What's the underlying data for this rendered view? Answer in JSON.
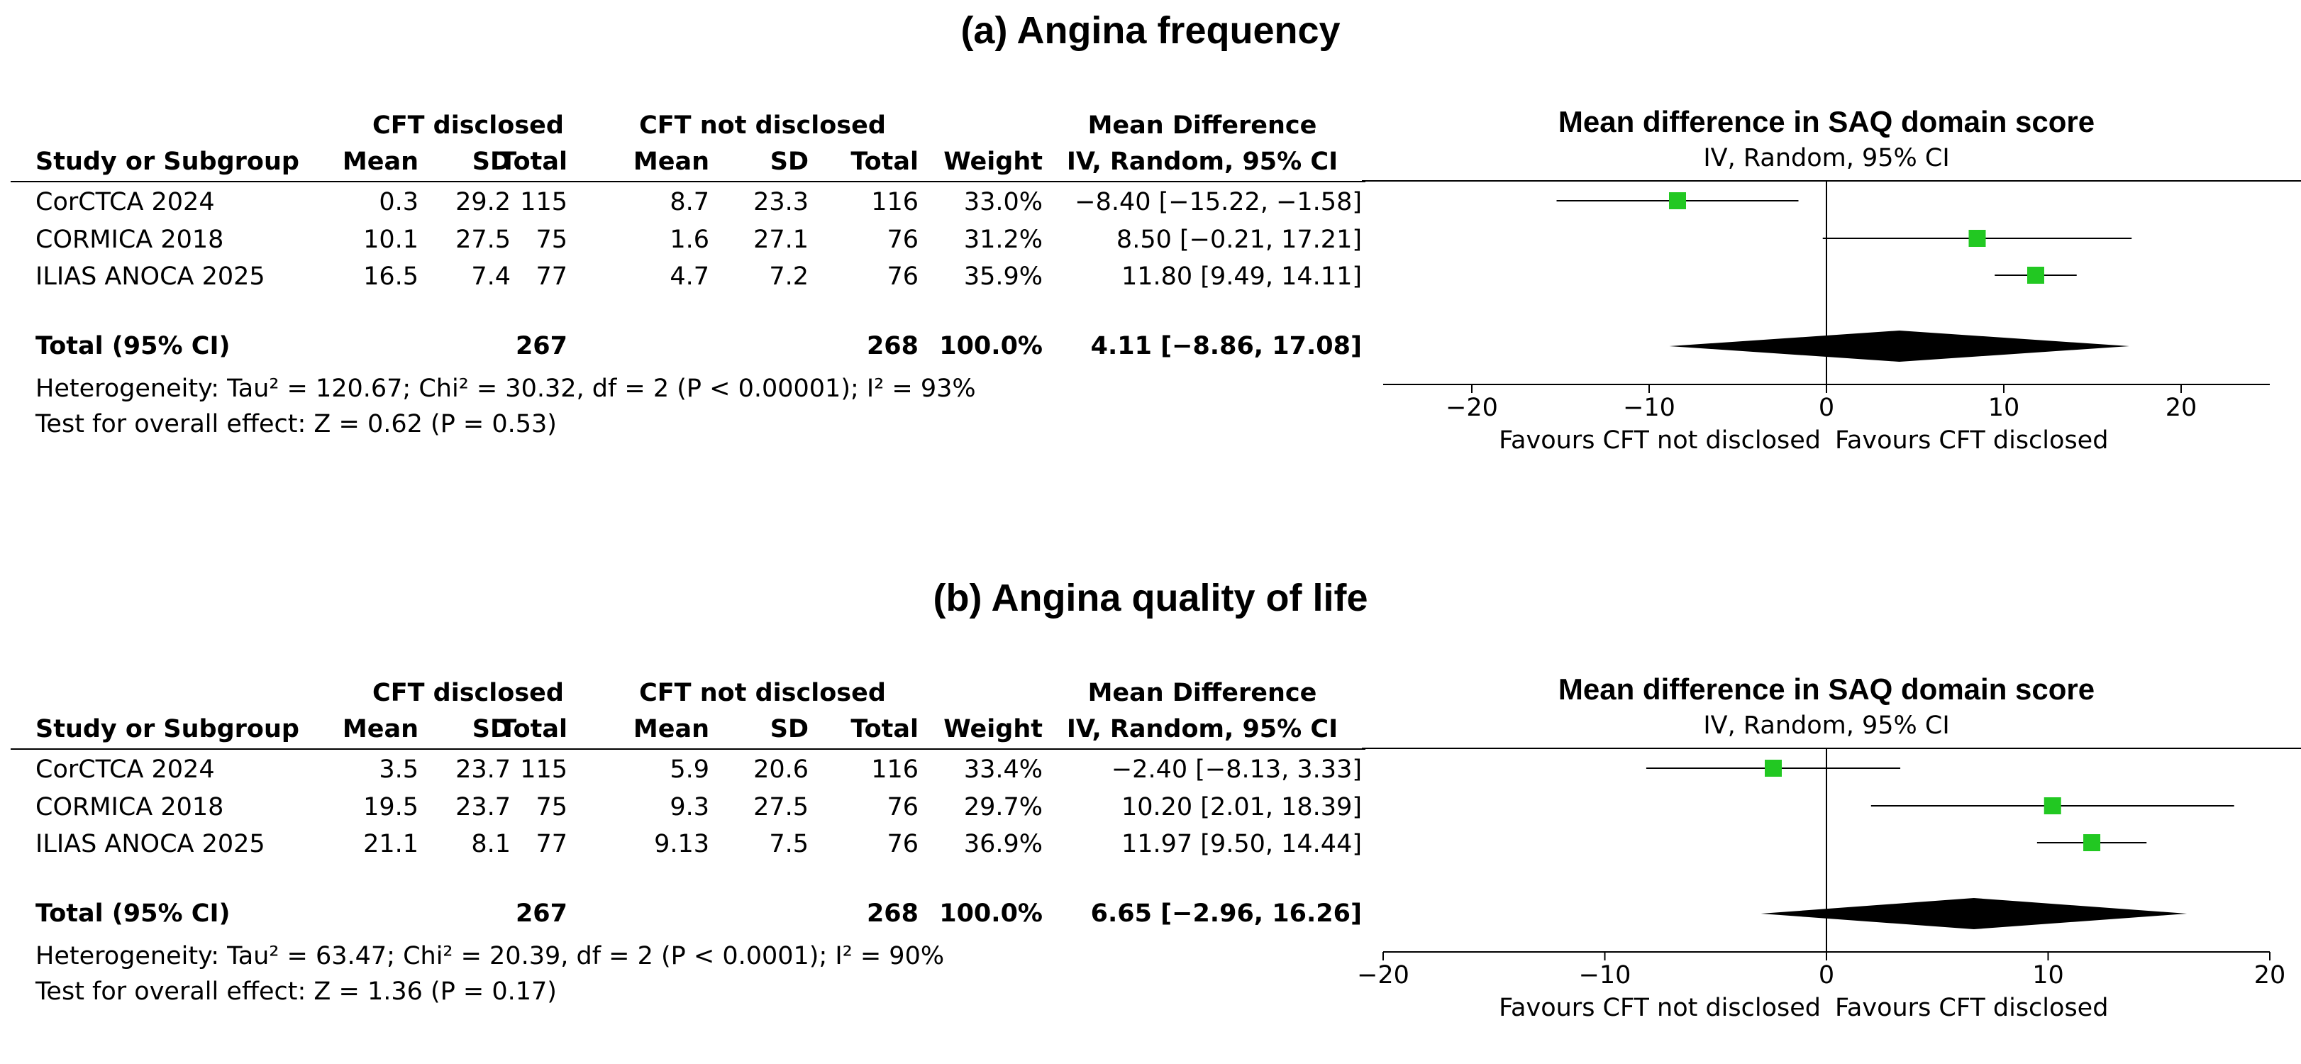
{
  "colors": {
    "marker": "#22c822",
    "diamond": "#000000",
    "axis": "#000000",
    "background": "#ffffff"
  },
  "columns": {
    "group_disclosed": "CFT disclosed",
    "group_not_disclosed": "CFT not disclosed",
    "study": "Study or Subgroup",
    "mean": "Mean",
    "sd": "SD",
    "total": "Total",
    "weight": "Weight",
    "effect_title": "Mean Difference",
    "effect_method": "IV, Random, 95% CI"
  },
  "chart_data": [
    {
      "type": "forest",
      "title": "(a) Angina frequency",
      "plot_title": "Mean difference in SAQ domain score",
      "plot_subtitle": "IV, Random, 95% CI",
      "xlim": [
        -25,
        25
      ],
      "ticks": [
        -20,
        -10,
        0,
        10,
        20
      ],
      "tick_labels": [
        "−20",
        "−10",
        "0",
        "10",
        "20"
      ],
      "favours_left": "Favours CFT not disclosed",
      "favours_right": "Favours CFT disclosed",
      "studies": [
        {
          "name": "CorCTCA 2024",
          "mean1": "0.3",
          "sd1": "29.2",
          "n1": "115",
          "mean2": "8.7",
          "sd2": "23.3",
          "n2": "116",
          "weight": "33.0%",
          "ci_text": "−8.40 [−15.22, −1.58]",
          "md": -8.4,
          "lo": -15.22,
          "hi": -1.58,
          "w": 33.0
        },
        {
          "name": "CORMICA 2018",
          "mean1": "10.1",
          "sd1": "27.5",
          "n1": "75",
          "mean2": "1.6",
          "sd2": "27.1",
          "n2": "76",
          "weight": "31.2%",
          "ci_text": "8.50 [−0.21, 17.21]",
          "md": 8.5,
          "lo": -0.21,
          "hi": 17.21,
          "w": 31.2
        },
        {
          "name": "ILIAS ANOCA 2025",
          "mean1": "16.5",
          "sd1": "7.4",
          "n1": "77",
          "mean2": "4.7",
          "sd2": "7.2",
          "n2": "76",
          "weight": "35.9%",
          "ci_text": "11.80 [9.49, 14.11]",
          "md": 11.8,
          "lo": 9.49,
          "hi": 14.11,
          "w": 35.9
        }
      ],
      "total": {
        "label": "Total (95% CI)",
        "n1": "267",
        "n2": "268",
        "weight": "100.0%",
        "ci_text": "4.11 [−8.86, 17.08]",
        "md": 4.11,
        "lo": -8.86,
        "hi": 17.08
      },
      "heterogeneity": "Heterogeneity: Tau² = 120.67; Chi² = 30.32, df = 2 (P < 0.00001); I² = 93%",
      "overall_effect": "Test for overall effect: Z = 0.62 (P = 0.53)"
    },
    {
      "type": "forest",
      "title": "(b) Angina quality of life",
      "plot_title": "Mean difference in SAQ domain score",
      "plot_subtitle": "IV, Random, 95% CI",
      "xlim": [
        -20,
        20
      ],
      "ticks": [
        -20,
        -10,
        0,
        10,
        20
      ],
      "tick_labels": [
        "−20",
        "−10",
        "0",
        "10",
        "20"
      ],
      "favours_left": "Favours CFT not disclosed",
      "favours_right": "Favours CFT disclosed",
      "studies": [
        {
          "name": "CorCTCA 2024",
          "mean1": "3.5",
          "sd1": "23.7",
          "n1": "115",
          "mean2": "5.9",
          "sd2": "20.6",
          "n2": "116",
          "weight": "33.4%",
          "ci_text": "−2.40 [−8.13, 3.33]",
          "md": -2.4,
          "lo": -8.13,
          "hi": 3.33,
          "w": 33.4
        },
        {
          "name": "CORMICA 2018",
          "mean1": "19.5",
          "sd1": "23.7",
          "n1": "75",
          "mean2": "9.3",
          "sd2": "27.5",
          "n2": "76",
          "weight": "29.7%",
          "ci_text": "10.20 [2.01, 18.39]",
          "md": 10.2,
          "lo": 2.01,
          "hi": 18.39,
          "w": 29.7
        },
        {
          "name": "ILIAS ANOCA 2025",
          "mean1": "21.1",
          "sd1": "8.1",
          "n1": "77",
          "mean2": "9.13",
          "sd2": "7.5",
          "n2": "76",
          "weight": "36.9%",
          "ci_text": "11.97 [9.50, 14.44]",
          "md": 11.97,
          "lo": 9.5,
          "hi": 14.44,
          "w": 36.9
        }
      ],
      "total": {
        "label": "Total (95% CI)",
        "n1": "267",
        "n2": "268",
        "weight": "100.0%",
        "ci_text": "6.65 [−2.96, 16.26]",
        "md": 6.65,
        "lo": -2.96,
        "hi": 16.26
      },
      "heterogeneity": "Heterogeneity: Tau² = 63.47; Chi² = 20.39, df = 2 (P < 0.0001); I² = 90%",
      "overall_effect": "Test for overall effect: Z = 1.36 (P = 0.17)"
    }
  ]
}
